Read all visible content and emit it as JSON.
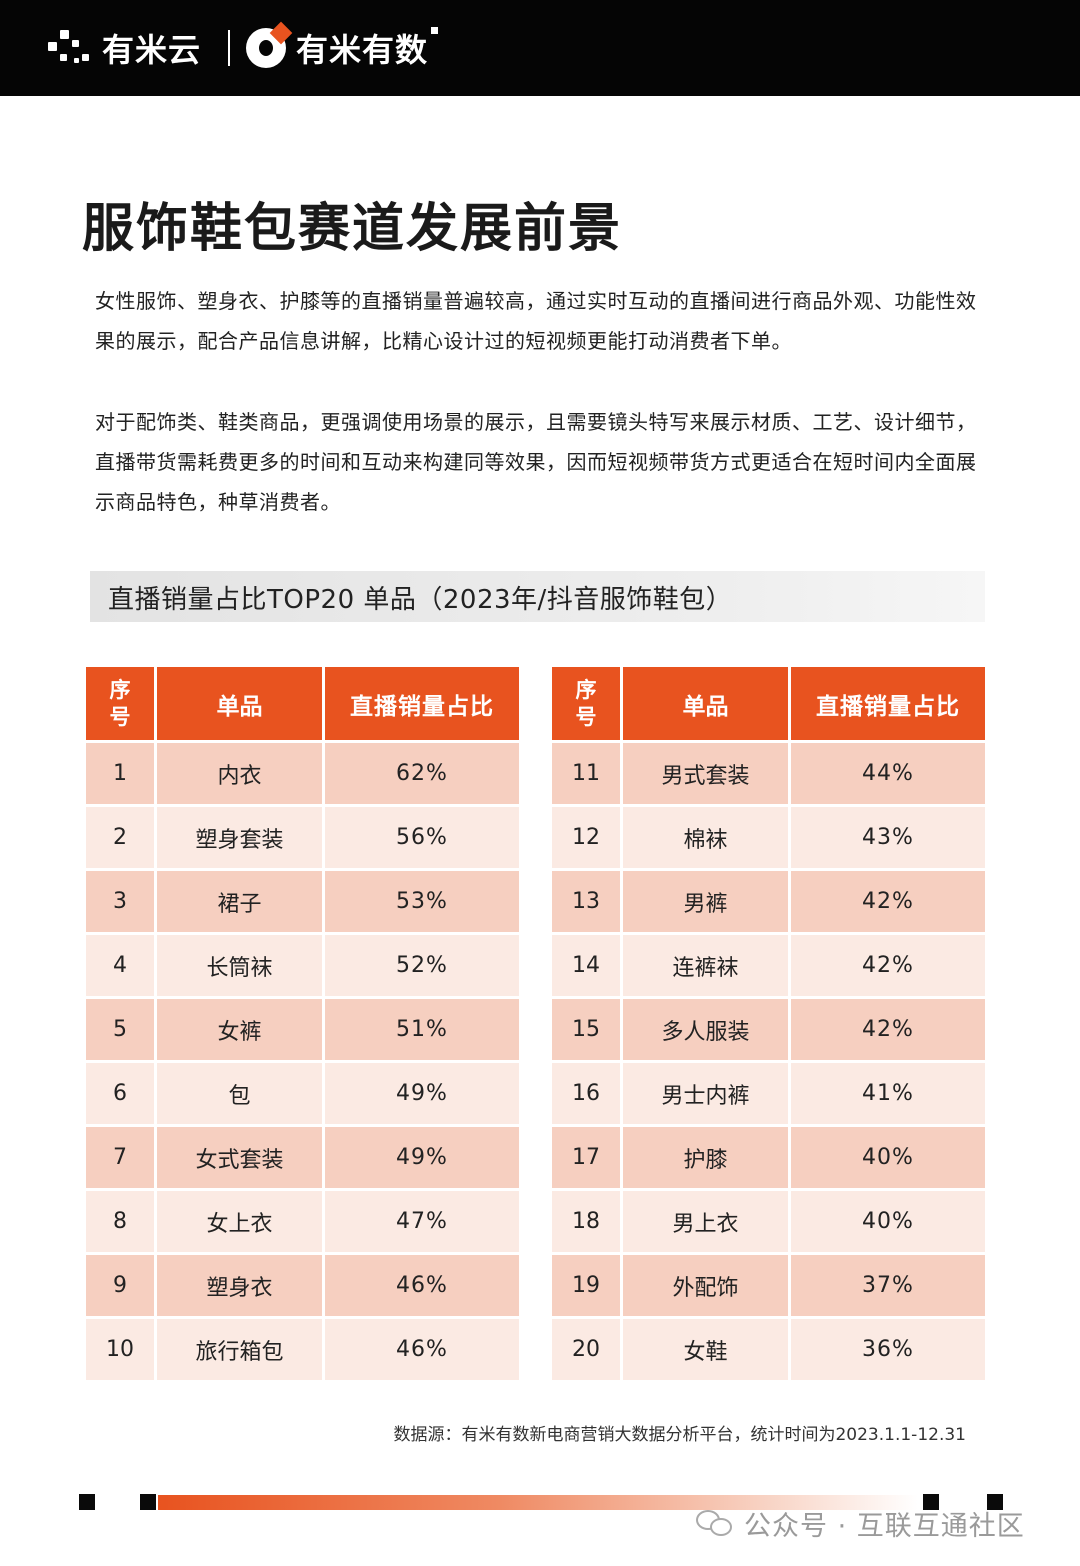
{
  "header": {
    "logo1_text": "有米云",
    "logo2_text": "有米有数"
  },
  "title": "服饰鞋包赛道发展前景",
  "paragraphs": [
    "女性服饰、塑身衣、护膝等的直播销量普遍较高，通过实时互动的直播间进行商品外观、功能性效果的展示，配合产品信息讲解，比精心设计过的短视频更能打动消费者下单。",
    "对于配饰类、鞋类商品，更强调使用场景的展示，且需要镜头特写来展示材质、工艺、设计细节，直播带货需耗费更多的时间和互动来构建同等效果，因而短视频带货方式更适合在短时间内全面展示商品特色，种草消费者。"
  ],
  "table_heading": "直播销量占比TOP20 单品（2023年/抖音服饰鞋包）",
  "columns": [
    "序号",
    "单品",
    "直播销量占比"
  ],
  "left_rows": [
    {
      "rank": "1",
      "item": "内衣",
      "share": "62%"
    },
    {
      "rank": "2",
      "item": "塑身套装",
      "share": "56%"
    },
    {
      "rank": "3",
      "item": "裙子",
      "share": "53%"
    },
    {
      "rank": "4",
      "item": "长筒袜",
      "share": "52%"
    },
    {
      "rank": "5",
      "item": "女裤",
      "share": "51%"
    },
    {
      "rank": "6",
      "item": "包",
      "share": "49%"
    },
    {
      "rank": "7",
      "item": "女式套装",
      "share": "49%"
    },
    {
      "rank": "8",
      "item": "女上衣",
      "share": "47%"
    },
    {
      "rank": "9",
      "item": "塑身衣",
      "share": "46%"
    },
    {
      "rank": "10",
      "item": "旅行箱包",
      "share": "46%"
    }
  ],
  "right_rows": [
    {
      "rank": "11",
      "item": "男式套装",
      "share": "44%"
    },
    {
      "rank": "12",
      "item": "棉袜",
      "share": "43%"
    },
    {
      "rank": "13",
      "item": "男裤",
      "share": "42%"
    },
    {
      "rank": "14",
      "item": "连裤袜",
      "share": "42%"
    },
    {
      "rank": "15",
      "item": "多人服装",
      "share": "42%"
    },
    {
      "rank": "16",
      "item": "男士内裤",
      "share": "41%"
    },
    {
      "rank": "17",
      "item": "护膝",
      "share": "40%"
    },
    {
      "rank": "18",
      "item": "男上衣",
      "share": "40%"
    },
    {
      "rank": "19",
      "item": "外配饰",
      "share": "37%"
    },
    {
      "rank": "20",
      "item": "女鞋",
      "share": "36%"
    }
  ],
  "source": "数据源：有米有数新电商营销大数据分析平台，统计时间为2023.1.1-12.31",
  "watermark": "公众号 · 互联互通社区",
  "colors": {
    "accent": "#e8531f",
    "row_dark": "#f6cfc0",
    "row_light": "#fbeae3",
    "topbar": "#050505"
  }
}
